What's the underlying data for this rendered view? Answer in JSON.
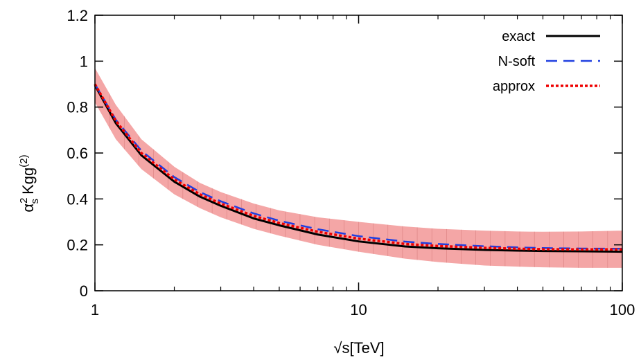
{
  "chart_data": {
    "type": "line",
    "title": "",
    "xlabel": "√s[TeV]",
    "ylabel": {
      "main": "α",
      "sup": "2",
      "sub": "s",
      "rest": " Kgg",
      "rest_sup": "(2)"
    },
    "x_scale": "log",
    "xlim": [
      1,
      100
    ],
    "ylim": [
      0,
      1.2
    ],
    "x_ticks": [
      1,
      10,
      100
    ],
    "x_tick_labels": [
      "1",
      "10",
      "100"
    ],
    "y_ticks": [
      0,
      0.2,
      0.4,
      0.6,
      0.8,
      1.0,
      1.2
    ],
    "y_tick_labels": [
      "0",
      "0.2",
      "0.4",
      "0.6",
      "0.8",
      "1",
      "1.2"
    ],
    "grid": false,
    "legend_position": "top-right",
    "x": [
      1,
      1.2,
      1.5,
      2,
      2.5,
      3,
      4,
      5,
      7,
      10,
      15,
      20,
      30,
      40,
      50,
      70,
      100
    ],
    "band": {
      "upper": [
        0.97,
        0.81,
        0.66,
        0.54,
        0.47,
        0.43,
        0.38,
        0.35,
        0.32,
        0.3,
        0.28,
        0.27,
        0.262,
        0.258,
        0.257,
        0.258,
        0.262
      ],
      "lower": [
        0.82,
        0.66,
        0.53,
        0.42,
        0.36,
        0.32,
        0.27,
        0.24,
        0.2,
        0.17,
        0.14,
        0.125,
        0.11,
        0.105,
        0.102,
        0.1,
        0.1
      ],
      "color": "#f4a6a6"
    },
    "series": [
      {
        "name": "exact",
        "color": "#000000",
        "style": "solid",
        "values": [
          0.895,
          0.73,
          0.59,
          0.475,
          0.41,
          0.37,
          0.315,
          0.285,
          0.245,
          0.215,
          0.193,
          0.185,
          0.178,
          0.175,
          0.173,
          0.172,
          0.17
        ]
      },
      {
        "name": "N-soft",
        "color": "#1f3fe0",
        "style": "dashed",
        "values": [
          0.9,
          0.745,
          0.61,
          0.495,
          0.43,
          0.39,
          0.337,
          0.305,
          0.268,
          0.238,
          0.214,
          0.204,
          0.194,
          0.189,
          0.186,
          0.184,
          0.183
        ]
      },
      {
        "name": "approx",
        "color": "#ee0000",
        "style": "dotted",
        "values": [
          0.9,
          0.74,
          0.6,
          0.485,
          0.42,
          0.38,
          0.326,
          0.295,
          0.257,
          0.227,
          0.204,
          0.195,
          0.187,
          0.183,
          0.181,
          0.18,
          0.18
        ]
      }
    ]
  }
}
